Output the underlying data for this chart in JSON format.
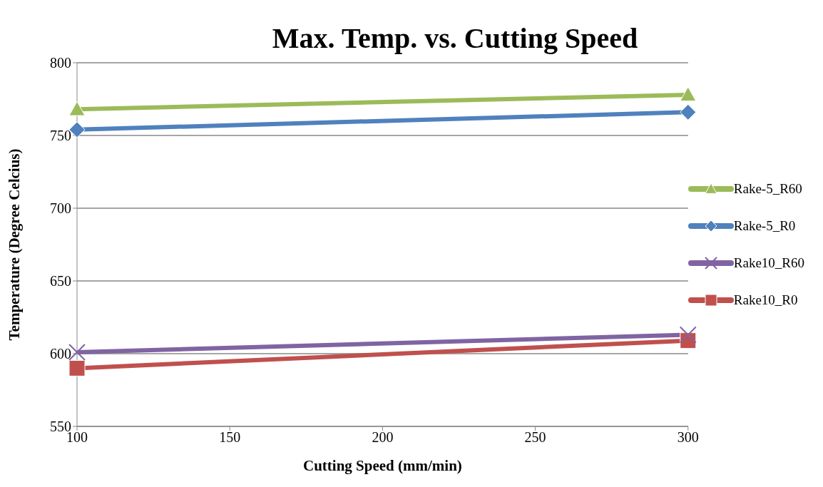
{
  "chart_data": {
    "type": "line",
    "title": "Max. Temp. vs. Cutting Speed",
    "xlabel": "Cutting Speed (mm/min)",
    "ylabel": "Temperature (Degree Celcius)",
    "x": [
      100,
      300
    ],
    "xlim": [
      100,
      300
    ],
    "xticks": [
      100,
      150,
      200,
      250,
      300
    ],
    "ylim": [
      550,
      800
    ],
    "yticks": [
      550,
      600,
      650,
      700,
      750,
      800
    ],
    "grid": "y",
    "legend": "right",
    "series": [
      {
        "name": "Rake-5_R60",
        "color": "#9bbb59",
        "marker": "triangle",
        "values": [
          768,
          778
        ]
      },
      {
        "name": "Rake-5_R0",
        "color": "#4f81bd",
        "marker": "diamond",
        "values": [
          754,
          766
        ]
      },
      {
        "name": "Rake10_R60",
        "color": "#8064a2",
        "marker": "cross",
        "values": [
          601,
          613
        ]
      },
      {
        "name": "Rake10_R0",
        "color": "#c0504d",
        "marker": "square",
        "values": [
          590,
          609
        ]
      }
    ]
  }
}
